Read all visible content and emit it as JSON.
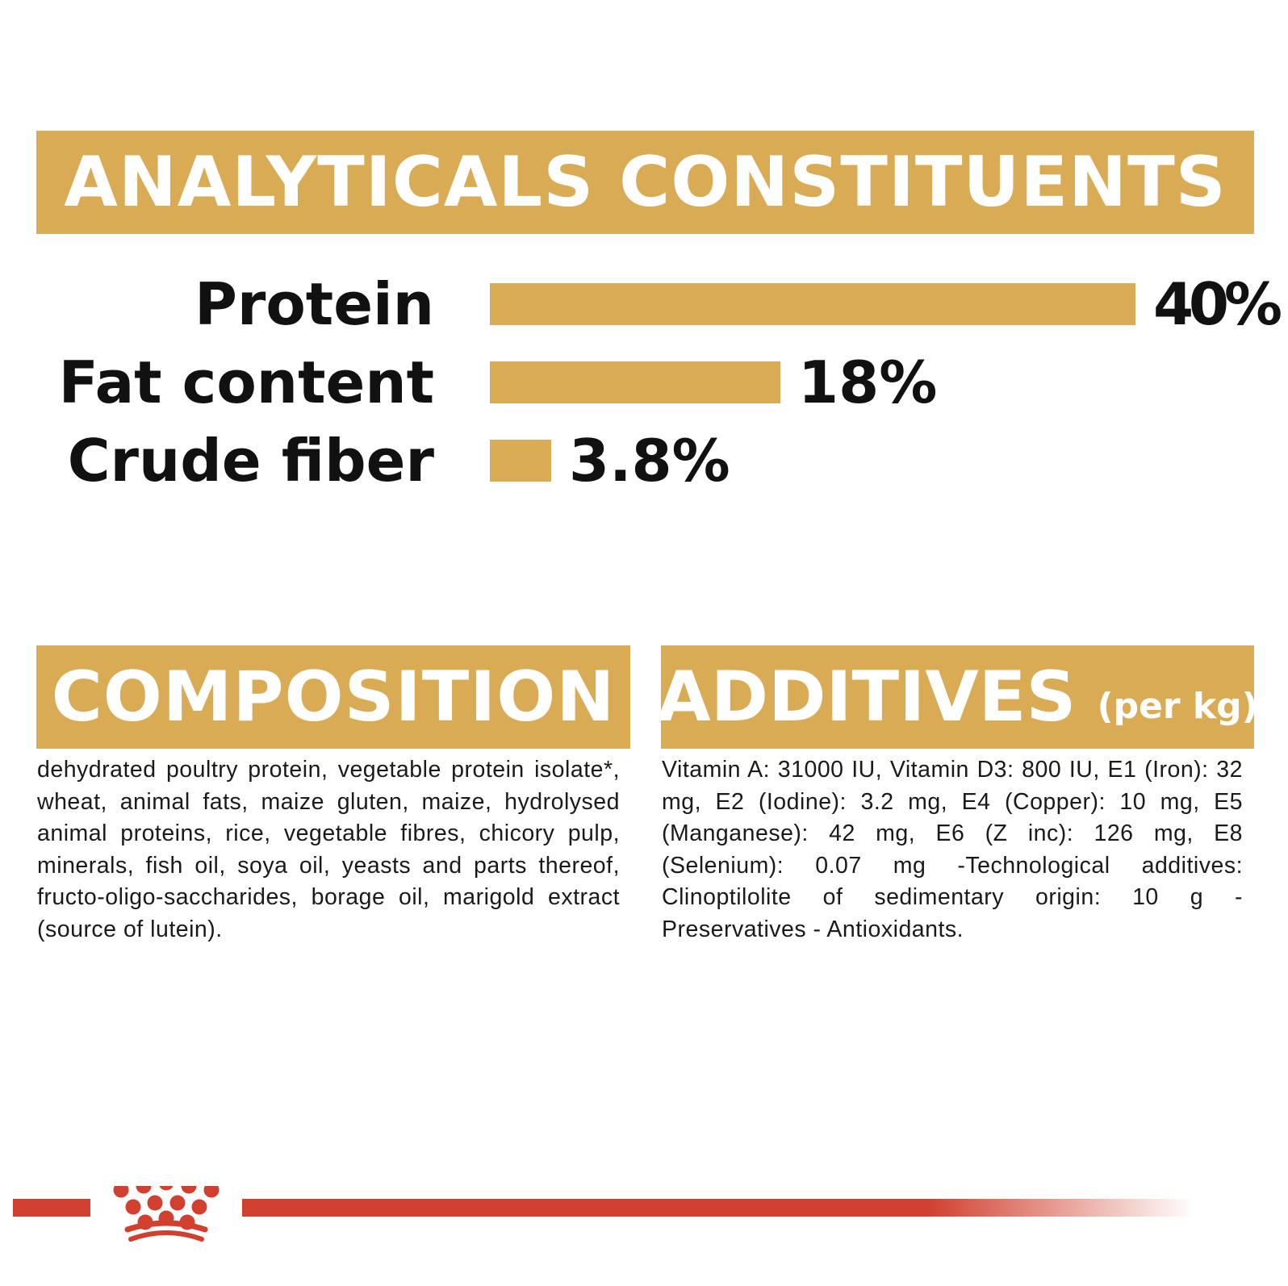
{
  "analytical": {
    "title": "ANALYTICALS CONSTITUENTS"
  },
  "chart_data": {
    "type": "bar",
    "orientation": "horizontal",
    "categories": [
      "Protein",
      "Fat content",
      "Crude fiber"
    ],
    "values": [
      40,
      18,
      3.8
    ],
    "value_labels": [
      "40%",
      "18%",
      "3.8%"
    ],
    "unit": "%",
    "xlim": [
      0,
      40
    ],
    "bar_color": "#d9ab55",
    "grid": false,
    "legend": "none"
  },
  "composition": {
    "title": "COMPOSITION",
    "text": "dehydrated poultry protein, vegetable protein isolate*, wheat, animal fats, maize gluten, maize, hydrolysed animal proteins, rice, vegetable fibres, chicory pulp, minerals, fish oil, soya oil, yeasts and parts thereof, fructo-oligo-saccharides, borage oil, marigold extract (source of lutein)."
  },
  "additives": {
    "title": "ADDITIVES",
    "subtitle": "(per kg)",
    "text": "Vitamin A: 31000 IU, Vitamin D3: 800 IU, E1 (Iron): 32 mg, E2 (Iodine): 3.2 mg, E4 (Copper): 10 mg, E5 (Manganese): 42 mg, E6 (Z inc): 126 mg, E8 (Selenium): 0.07 mg -Technological additives: Clinoptilolite of sedimentary origin: 10 g - Preservatives - Antioxidants."
  },
  "colors": {
    "gold": "#d9ab55",
    "brand_red": "#d1402f",
    "text": "#111111"
  },
  "footer": {
    "logo": "crown-icon"
  }
}
